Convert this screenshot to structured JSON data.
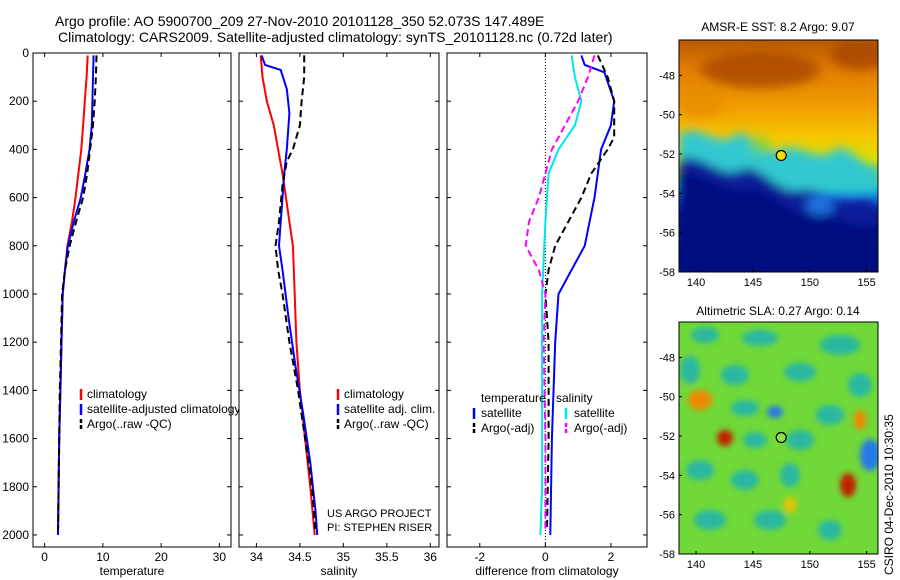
{
  "header": {
    "line1": "Argo profile: AO 5900700_209 27-Nov-2010 20101128_350 52.073S 147.489E",
    "line2": "Climatology: CARS2009. Satellite-adjusted climatology: synTS_20101128.nc (0.72d later)"
  },
  "colors": {
    "climatology": "#ff0000",
    "satellite": "#0000ff",
    "argo": "#000000",
    "sat_diff": "#00e5ee",
    "argo_adj_diff": "#ff00ff"
  },
  "chart_data": [
    {
      "id": "temperature",
      "type": "line",
      "xlabel": "temperature",
      "ylabel": "",
      "xlim": [
        -2,
        32
      ],
      "ylim": [
        2050,
        0
      ],
      "xticks": [
        0,
        10,
        20,
        30
      ],
      "yticks": [
        0,
        200,
        400,
        600,
        800,
        1000,
        1200,
        1400,
        1600,
        1800,
        2000
      ],
      "legend": {
        "placement": "center-right",
        "entries": [
          "climatology",
          "satellite-adjusted climatology",
          "Argo(..raw -QC)"
        ]
      },
      "series": [
        {
          "name": "climatology",
          "color": "#ff0000",
          "dash": "solid",
          "points": [
            [
              7.4,
              10
            ],
            [
              7.2,
              100
            ],
            [
              6.9,
              200
            ],
            [
              6.6,
              300
            ],
            [
              6.3,
              400
            ],
            [
              5.8,
              500
            ],
            [
              5.3,
              600
            ],
            [
              4.7,
              700
            ],
            [
              3.9,
              800
            ],
            [
              3.5,
              900
            ],
            [
              3.1,
              1000
            ],
            [
              2.9,
              1200
            ],
            [
              2.7,
              1400
            ],
            [
              2.5,
              1600
            ],
            [
              2.4,
              1800
            ],
            [
              2.3,
              2000
            ]
          ]
        },
        {
          "name": "satellite-adjusted climatology",
          "color": "#0000ff",
          "dash": "solid",
          "points": [
            [
              8.4,
              10
            ],
            [
              8.3,
              100
            ],
            [
              8.2,
              200
            ],
            [
              8.1,
              300
            ],
            [
              7.7,
              400
            ],
            [
              7.0,
              500
            ],
            [
              6.2,
              600
            ],
            [
              5.0,
              700
            ],
            [
              4.0,
              800
            ],
            [
              3.5,
              900
            ],
            [
              3.1,
              1000
            ],
            [
              2.9,
              1200
            ],
            [
              2.7,
              1400
            ],
            [
              2.5,
              1600
            ],
            [
              2.4,
              1800
            ],
            [
              2.3,
              2000
            ]
          ]
        },
        {
          "name": "Argo(..raw -QC)",
          "color": "#000000",
          "dash": "dashed",
          "points": [
            [
              8.9,
              10
            ],
            [
              8.8,
              100
            ],
            [
              8.6,
              200
            ],
            [
              8.3,
              300
            ],
            [
              7.8,
              400
            ],
            [
              7.3,
              500
            ],
            [
              6.6,
              600
            ],
            [
              5.4,
              700
            ],
            [
              4.3,
              800
            ],
            [
              3.5,
              900
            ],
            [
              3.0,
              1000
            ],
            [
              2.8,
              1200
            ],
            [
              2.6,
              1400
            ],
            [
              2.5,
              1600
            ],
            [
              2.4,
              1800
            ],
            [
              2.3,
              1980
            ]
          ]
        }
      ]
    },
    {
      "id": "salinity",
      "type": "line",
      "xlabel": "salinity",
      "ylabel": "",
      "xlim": [
        33.8,
        36.1
      ],
      "ylim": [
        2050,
        0
      ],
      "xticks": [
        34,
        34.5,
        35,
        35.5,
        36
      ],
      "xticklabels": [
        "34",
        "34.5",
        "35",
        "35.5",
        "36"
      ],
      "yticks": [
        0,
        200,
        400,
        600,
        800,
        1000,
        1200,
        1400,
        1600,
        1800,
        2000
      ],
      "legend": {
        "placement": "center-right",
        "entries": [
          "climatology",
          "satellite adj. clim.",
          "Argo(..raw -QC)"
        ]
      },
      "annotation": {
        "line1": "US ARGO PROJECT",
        "line2": "PI: STEPHEN RISER"
      },
      "series": [
        {
          "name": "climatology",
          "color": "#ff0000",
          "dash": "solid",
          "points": [
            [
              34.05,
              10
            ],
            [
              34.07,
              100
            ],
            [
              34.12,
              200
            ],
            [
              34.2,
              300
            ],
            [
              34.25,
              400
            ],
            [
              34.3,
              500
            ],
            [
              34.38,
              700
            ],
            [
              34.42,
              800
            ],
            [
              34.44,
              1000
            ],
            [
              34.46,
              1200
            ],
            [
              34.5,
              1400
            ],
            [
              34.56,
              1600
            ],
            [
              34.62,
              1800
            ],
            [
              34.67,
              2000
            ]
          ]
        },
        {
          "name": "satellite adj. clim.",
          "color": "#0000ff",
          "dash": "solid",
          "points": [
            [
              34.06,
              10
            ],
            [
              34.1,
              50
            ],
            [
              34.28,
              70
            ],
            [
              34.35,
              150
            ],
            [
              34.38,
              250
            ],
            [
              34.35,
              400
            ],
            [
              34.32,
              500
            ],
            [
              34.3,
              600
            ],
            [
              34.28,
              700
            ],
            [
              34.26,
              800
            ],
            [
              34.3,
              900
            ],
            [
              34.37,
              1100
            ],
            [
              34.45,
              1300
            ],
            [
              34.54,
              1500
            ],
            [
              34.62,
              1700
            ],
            [
              34.68,
              1900
            ],
            [
              34.7,
              2000
            ]
          ]
        },
        {
          "name": "Argo(..raw -QC)",
          "color": "#000000",
          "dash": "dashed",
          "points": [
            [
              34.55,
              10
            ],
            [
              34.55,
              100
            ],
            [
              34.52,
              200
            ],
            [
              34.5,
              300
            ],
            [
              34.42,
              400
            ],
            [
              34.35,
              450
            ],
            [
              34.3,
              550
            ],
            [
              34.26,
              700
            ],
            [
              34.22,
              800
            ],
            [
              34.25,
              900
            ],
            [
              34.3,
              1000
            ],
            [
              34.38,
              1200
            ],
            [
              34.48,
              1400
            ],
            [
              34.56,
              1600
            ],
            [
              34.64,
              1800
            ],
            [
              34.68,
              1990
            ]
          ]
        }
      ]
    },
    {
      "id": "difference",
      "type": "line",
      "xlabel": "difference from climatology",
      "ylabel": "",
      "xlim": [
        -3,
        3.1
      ],
      "ylim": [
        2050,
        0
      ],
      "xticks": [
        -2,
        0,
        2
      ],
      "yticks": [
        0,
        200,
        400,
        600,
        800,
        1000,
        1200,
        1400,
        1600,
        1800,
        2000
      ],
      "legend": {
        "placement": "center",
        "left_title": "temperature",
        "right_title": "salinity",
        "left_entries": [
          "satellite",
          "Argo(-adj)"
        ],
        "right_entries": [
          "satellite",
          "Argo(-adj)"
        ]
      },
      "series": [
        {
          "name": "temperature satellite",
          "color": "#0000ff",
          "dash": "solid",
          "points": [
            [
              1.1,
              10
            ],
            [
              1.2,
              50
            ],
            [
              1.8,
              80
            ],
            [
              2.1,
              200
            ],
            [
              2.0,
              300
            ],
            [
              1.7,
              400
            ],
            [
              1.5,
              600
            ],
            [
              1.2,
              800
            ],
            [
              0.8,
              900
            ],
            [
              0.4,
              1000
            ],
            [
              0.3,
              1200
            ],
            [
              0.2,
              1600
            ],
            [
              0.15,
              2000
            ]
          ]
        },
        {
          "name": "temperature Argo(-adj)",
          "color": "#000000",
          "dash": "dashed",
          "points": [
            [
              1.6,
              10
            ],
            [
              1.9,
              100
            ],
            [
              2.1,
              200
            ],
            [
              2.1,
              350
            ],
            [
              1.9,
              400
            ],
            [
              1.4,
              500
            ],
            [
              1.1,
              600
            ],
            [
              0.7,
              700
            ],
            [
              0.3,
              800
            ],
            [
              0.1,
              900
            ],
            [
              0.0,
              1000
            ],
            [
              0.1,
              1200
            ],
            [
              0.1,
              1600
            ],
            [
              0.05,
              1980
            ]
          ]
        },
        {
          "name": "salinity satellite",
          "color": "#00e5ee",
          "dash": "solid",
          "points": [
            [
              0.8,
              10
            ],
            [
              0.9,
              100
            ],
            [
              1.1,
              200
            ],
            [
              0.9,
              300
            ],
            [
              0.4,
              400
            ],
            [
              0.1,
              500
            ],
            [
              0.0,
              700
            ],
            [
              -0.1,
              1000
            ],
            [
              -0.1,
              1200
            ],
            [
              -0.1,
              1500
            ],
            [
              -0.1,
              1800
            ],
            [
              -0.15,
              2000
            ]
          ]
        },
        {
          "name": "salinity Argo(-adj)",
          "color": "#ff00ff",
          "dash": "dashed",
          "points": [
            [
              1.5,
              10
            ],
            [
              1.3,
              100
            ],
            [
              1.0,
              200
            ],
            [
              0.6,
              300
            ],
            [
              0.2,
              400
            ],
            [
              0.0,
              500
            ],
            [
              -0.2,
              600
            ],
            [
              -0.5,
              700
            ],
            [
              -0.6,
              800
            ],
            [
              -0.2,
              900
            ],
            [
              0.0,
              1000
            ],
            [
              -0.05,
              1200
            ],
            [
              0.0,
              1600
            ],
            [
              0.0,
              1990
            ]
          ]
        }
      ]
    },
    {
      "id": "sst-map",
      "type": "heatmap",
      "title": "AMSR-E SST: 8.2 Argo: 9.07",
      "xlim": [
        138.5,
        156
      ],
      "ylim": [
        -58,
        -46.2
      ],
      "xticks": [
        140,
        145,
        150,
        155
      ],
      "yticks": [
        -48,
        -50,
        -52,
        -54,
        -56,
        -58
      ],
      "marker": {
        "lon": 147.489,
        "lat": -52.073
      }
    },
    {
      "id": "sla-map",
      "type": "heatmap",
      "title": "Altimetric SLA: 0.27 Argo: 0.14",
      "xlim": [
        138.5,
        156
      ],
      "ylim": [
        -58,
        -46.2
      ],
      "xticks": [
        140,
        145,
        150,
        155
      ],
      "yticks": [
        -48,
        -50,
        -52,
        -54,
        -56,
        -58
      ],
      "marker": {
        "lon": 147.489,
        "lat": -52.073
      }
    }
  ],
  "footer": {
    "credit": "CSIRO 04-Dec-2010 10:30:35"
  }
}
